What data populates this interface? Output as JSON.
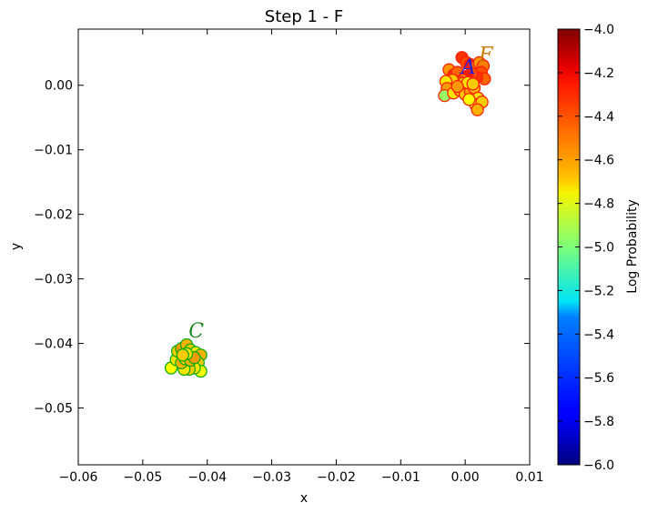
{
  "chart_data": {
    "type": "scatter",
    "title": "Step 1 - F",
    "xlabel": "x",
    "ylabel": "y",
    "xlim": [
      -0.06,
      0.01
    ],
    "ylim": [
      -0.0588,
      0.0087
    ],
    "xticks": [
      -0.06,
      -0.05,
      -0.04,
      -0.03,
      -0.02,
      -0.01,
      0.0,
      0.01
    ],
    "xtick_labels": [
      "−0.06",
      "−0.05",
      "−0.04",
      "−0.03",
      "−0.02",
      "−0.01",
      "0.00",
      "0.01"
    ],
    "yticks": [
      0.0,
      -0.01,
      -0.02,
      -0.03,
      -0.04,
      -0.05
    ],
    "ytick_labels": [
      "0.00",
      "−0.01",
      "−0.02",
      "−0.03",
      "−0.04",
      "−0.05"
    ],
    "grid": false,
    "colorbar": {
      "label": "Log Probability",
      "range": [
        -6.0,
        -4.0
      ],
      "colormap": "jet",
      "ticks": [
        -4.0,
        -4.2,
        -4.4,
        -4.6,
        -4.8,
        -5.0,
        -5.2,
        -5.4,
        -5.6,
        -5.8,
        -6.0
      ],
      "tick_labels": [
        "−4.0",
        "−4.2",
        "−4.4",
        "−4.6",
        "−4.8",
        "−5.0",
        "−5.2",
        "−5.4",
        "−5.6",
        "−5.8",
        "−6.0"
      ]
    },
    "annotations": [
      {
        "text": "A",
        "x": 0.0005,
        "y": 0.0018,
        "color": "#2222dd"
      },
      {
        "text": "F",
        "x": 0.0032,
        "y": 0.0037,
        "color": "#cc7700"
      },
      {
        "text": "C",
        "x": -0.0417,
        "y": -0.0391,
        "color": "#228822"
      }
    ],
    "series": [
      {
        "edge_color": "#ff2200",
        "points": [
          {
            "x": -0.0025,
            "y": 0.0024,
            "logp": -4.55
          },
          {
            "x": -0.0018,
            "y": 0.0016,
            "logp": -4.35
          },
          {
            "x": -0.0012,
            "y": 0.002,
            "logp": -4.45
          },
          {
            "x": -0.0005,
            "y": 0.0043,
            "logp": -4.35
          },
          {
            "x": 0.0002,
            "y": 0.0035,
            "logp": -4.4
          },
          {
            "x": 0.0008,
            "y": 0.0032,
            "logp": -4.3
          },
          {
            "x": 0.0015,
            "y": 0.0028,
            "logp": -4.45
          },
          {
            "x": 0.0022,
            "y": 0.0035,
            "logp": -4.55
          },
          {
            "x": 0.0028,
            "y": 0.003,
            "logp": -4.5
          },
          {
            "x": 0.0025,
            "y": 0.002,
            "logp": -4.4
          },
          {
            "x": 0.003,
            "y": 0.001,
            "logp": -4.45
          },
          {
            "x": 0.0018,
            "y": 0.0012,
            "logp": -4.35
          },
          {
            "x": 0.001,
            "y": 0.0018,
            "logp": -4.4
          },
          {
            "x": 0.0003,
            "y": 0.0014,
            "logp": -4.3
          },
          {
            "x": -0.0004,
            "y": 0.0008,
            "logp": -4.5
          },
          {
            "x": -0.001,
            "y": 0.0005,
            "logp": -4.45
          },
          {
            "x": -0.002,
            "y": 0.0008,
            "logp": -4.65
          },
          {
            "x": -0.003,
            "y": 0.0006,
            "logp": -4.7
          },
          {
            "x": -0.0028,
            "y": -0.0005,
            "logp": -4.55
          },
          {
            "x": -0.0032,
            "y": -0.0016,
            "logp": -4.95
          },
          {
            "x": -0.0018,
            "y": -0.0012,
            "logp": -4.7
          },
          {
            "x": -0.0008,
            "y": -0.0008,
            "logp": -4.6
          },
          {
            "x": 0.0,
            "y": -0.0014,
            "logp": -4.65
          },
          {
            "x": 0.0008,
            "y": -0.001,
            "logp": -4.55
          },
          {
            "x": 0.0014,
            "y": -0.0004,
            "logp": -4.6
          },
          {
            "x": 0.002,
            "y": -0.002,
            "logp": -4.7
          },
          {
            "x": 0.0016,
            "y": -0.003,
            "logp": -4.8
          },
          {
            "x": 0.0026,
            "y": -0.0026,
            "logp": -4.65
          },
          {
            "x": 0.0019,
            "y": -0.0038,
            "logp": -4.6
          },
          {
            "x": 0.0006,
            "y": -0.0022,
            "logp": -4.75
          },
          {
            "x": -0.0003,
            "y": 0.0003,
            "logp": -4.65
          },
          {
            "x": 0.0004,
            "y": 0.0004,
            "logp": -4.7
          },
          {
            "x": -0.0012,
            "y": -0.0002,
            "logp": -4.55
          },
          {
            "x": 0.0012,
            "y": 0.0002,
            "logp": -4.65
          }
        ]
      },
      {
        "edge_color": "#11aa11",
        "points": [
          {
            "x": -0.0456,
            "y": -0.0438,
            "logp": -4.75
          },
          {
            "x": -0.0448,
            "y": -0.0425,
            "logp": -4.7
          },
          {
            "x": -0.0446,
            "y": -0.0412,
            "logp": -4.65
          },
          {
            "x": -0.044,
            "y": -0.0408,
            "logp": -4.55
          },
          {
            "x": -0.0432,
            "y": -0.0402,
            "logp": -4.6
          },
          {
            "x": -0.0426,
            "y": -0.041,
            "logp": -4.65
          },
          {
            "x": -0.0418,
            "y": -0.0414,
            "logp": -4.7
          },
          {
            "x": -0.041,
            "y": -0.0418,
            "logp": -4.6
          },
          {
            "x": -0.0414,
            "y": -0.043,
            "logp": -4.65
          },
          {
            "x": -0.041,
            "y": -0.0443,
            "logp": -4.75
          },
          {
            "x": -0.042,
            "y": -0.0438,
            "logp": -4.7
          },
          {
            "x": -0.0428,
            "y": -0.044,
            "logp": -4.65
          },
          {
            "x": -0.0436,
            "y": -0.044,
            "logp": -4.7
          },
          {
            "x": -0.044,
            "y": -0.043,
            "logp": -4.6
          },
          {
            "x": -0.0434,
            "y": -0.0424,
            "logp": -4.65
          },
          {
            "x": -0.0426,
            "y": -0.0426,
            "logp": -4.6
          },
          {
            "x": -0.042,
            "y": -0.0422,
            "logp": -4.55
          },
          {
            "x": -0.0432,
            "y": -0.0416,
            "logp": -4.7
          },
          {
            "x": -0.0438,
            "y": -0.0418,
            "logp": -4.65
          }
        ]
      }
    ]
  }
}
